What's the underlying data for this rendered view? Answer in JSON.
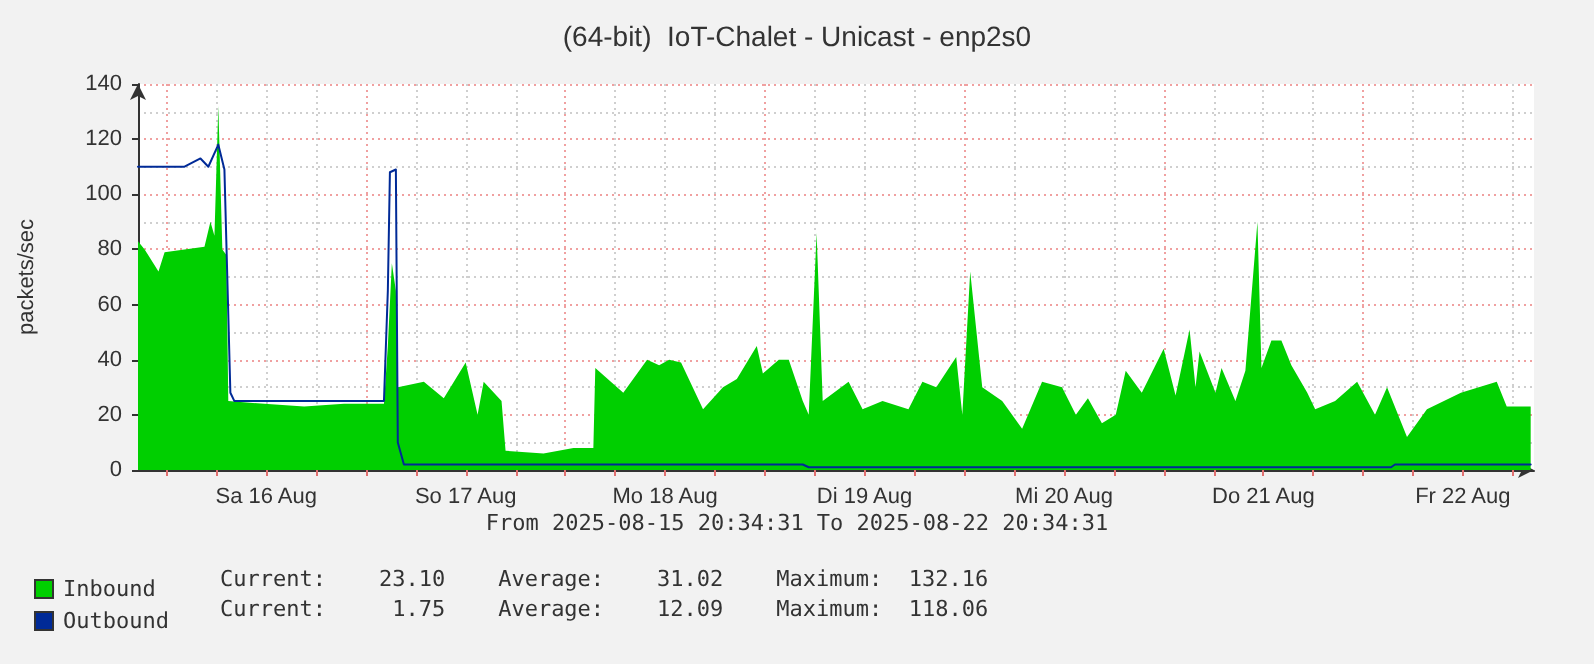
{
  "chart_data": {
    "type": "area",
    "title": "(64-bit)  IoT-Chalet - Unicast - enp2s0",
    "ylabel": "packets/sec",
    "annotations": [
      "From 2025-08-15 20:34:31 To 2025-08-22 20:34:31",
      "Current:    23.10    Average:    31.02    Maximum:  132.16",
      "Current:     1.75    Average:    12.09    Maximum:  118.06"
    ],
    "xlim": [
      "2025-08-15T20:34",
      "2025-08-22T20:34"
    ],
    "xticks": [
      {
        "value": "2025-08-16T00:00",
        "label": null
      },
      {
        "value": "2025-08-16T06:00",
        "label": null
      },
      {
        "value": "2025-08-16T12:00",
        "label": "Sa 16 Aug"
      },
      {
        "value": "2025-08-16T18:00",
        "label": null
      },
      {
        "value": "2025-08-17T00:00",
        "label": null
      },
      {
        "value": "2025-08-17T06:00",
        "label": null
      },
      {
        "value": "2025-08-17T12:00",
        "label": "So 17 Aug"
      },
      {
        "value": "2025-08-17T18:00",
        "label": null
      },
      {
        "value": "2025-08-18T00:00",
        "label": null
      },
      {
        "value": "2025-08-18T06:00",
        "label": null
      },
      {
        "value": "2025-08-18T12:00",
        "label": "Mo 18 Aug"
      },
      {
        "value": "2025-08-18T18:00",
        "label": null
      },
      {
        "value": "2025-08-19T00:00",
        "label": null
      },
      {
        "value": "2025-08-19T06:00",
        "label": null
      },
      {
        "value": "2025-08-19T12:00",
        "label": "Di 19 Aug"
      },
      {
        "value": "2025-08-19T18:00",
        "label": null
      },
      {
        "value": "2025-08-20T00:00",
        "label": null
      },
      {
        "value": "2025-08-20T06:00",
        "label": null
      },
      {
        "value": "2025-08-20T12:00",
        "label": "Mi 20 Aug"
      },
      {
        "value": "2025-08-20T18:00",
        "label": null
      },
      {
        "value": "2025-08-21T00:00",
        "label": null
      },
      {
        "value": "2025-08-21T06:00",
        "label": null
      },
      {
        "value": "2025-08-21T12:00",
        "label": "Do 21 Aug"
      },
      {
        "value": "2025-08-21T18:00",
        "label": null
      },
      {
        "value": "2025-08-22T00:00",
        "label": null
      },
      {
        "value": "2025-08-22T06:00",
        "label": null
      },
      {
        "value": "2025-08-22T12:00",
        "label": "Fr 22 Aug"
      },
      {
        "value": "2025-08-22T18:00",
        "label": null
      }
    ],
    "ylim": [
      0,
      140
    ],
    "yticks": [
      0,
      20,
      40,
      60,
      80,
      100,
      120,
      140
    ],
    "grid": true,
    "legend": "bottom left",
    "marker": "none",
    "line_style": "solid",
    "series": [
      {
        "name": "Inbound",
        "color": "#00cf00",
        "x": [
          "2025-08-15T20:34",
          "2025-08-15T21:22",
          "2025-08-15T23:02",
          "2025-08-15T23:46",
          "2025-08-16T02:10",
          "2025-08-16T04:34",
          "2025-08-16T05:17",
          "2025-08-16T05:46",
          "2025-08-16T06:14",
          "2025-08-16T06:43",
          "2025-08-16T07:12",
          "2025-08-16T07:26",
          "2025-08-16T11:46",
          "2025-08-16T16:34",
          "2025-08-16T21:22",
          "2025-08-17T02:10",
          "2025-08-17T02:38",
          "2025-08-17T03:07",
          "2025-08-17T03:36",
          "2025-08-17T03:50",
          "2025-08-17T06:58",
          "2025-08-17T09:22",
          "2025-08-17T12:00",
          "2025-08-17T13:26",
          "2025-08-17T14:10",
          "2025-08-17T16:19",
          "2025-08-17T16:48",
          "2025-08-17T21:22",
          "2025-08-18T00:58",
          "2025-08-18T03:22",
          "2025-08-18T03:36",
          "2025-08-18T06:58",
          "2025-08-18T09:50",
          "2025-08-18T11:17",
          "2025-08-18T12:29",
          "2025-08-18T13:55",
          "2025-08-18T16:34",
          "2025-08-18T18:58",
          "2025-08-18T20:38",
          "2025-08-18T23:02",
          "2025-08-18T23:46",
          "2025-08-19T01:41",
          "2025-08-19T02:53",
          "2025-08-19T04:34",
          "2025-08-19T05:17",
          "2025-08-19T06:14",
          "2025-08-19T06:58",
          "2025-08-19T10:05",
          "2025-08-19T11:46",
          "2025-08-19T14:10",
          "2025-08-19T17:17",
          "2025-08-19T18:58",
          "2025-08-19T20:38",
          "2025-08-19T23:02",
          "2025-08-19T23:46",
          "2025-08-20T00:43",
          "2025-08-20T02:10",
          "2025-08-20T04:34",
          "2025-08-20T06:58",
          "2025-08-20T09:22",
          "2025-08-20T11:46",
          "2025-08-20T13:26",
          "2025-08-20T14:53",
          "2025-08-20T16:34",
          "2025-08-20T18:14",
          "2025-08-20T19:26",
          "2025-08-20T21:22",
          "2025-08-21T00:00",
          "2025-08-21T01:26",
          "2025-08-21T03:07",
          "2025-08-21T03:50",
          "2025-08-21T04:19",
          "2025-08-21T06:14",
          "2025-08-21T06:58",
          "2025-08-21T08:38",
          "2025-08-21T09:50",
          "2025-08-21T11:17",
          "2025-08-21T11:46",
          "2025-08-21T12:58",
          "2025-08-21T14:10",
          "2025-08-21T15:22",
          "2025-08-21T17:17",
          "2025-08-21T18:14",
          "2025-08-21T20:38",
          "2025-08-21T23:17",
          "2025-08-22T01:26",
          "2025-08-22T02:53",
          "2025-08-22T05:17",
          "2025-08-22T07:41",
          "2025-08-22T11:46",
          "2025-08-22T16:05",
          "2025-08-22T17:17",
          "2025-08-22T20:10"
        ],
        "values": [
          83,
          80,
          72,
          79,
          80,
          81,
          90,
          85,
          132,
          80,
          78,
          25,
          24,
          23,
          24,
          24,
          45,
          75,
          65,
          30,
          32,
          26,
          39,
          20,
          32,
          25,
          7,
          6,
          8,
          8,
          37,
          28,
          40,
          38,
          40,
          39,
          22,
          30,
          33,
          45,
          35,
          40,
          40,
          25,
          20,
          86,
          25,
          32,
          22,
          25,
          22,
          32,
          30,
          41,
          20,
          72,
          30,
          25,
          15,
          32,
          30,
          20,
          26,
          17,
          20,
          36,
          28,
          44,
          27,
          51,
          30,
          43,
          28,
          37,
          25,
          36,
          90,
          37,
          47,
          47,
          38,
          28,
          22,
          25,
          32,
          20,
          30,
          12,
          22,
          28,
          32,
          23,
          23
        ]
      },
      {
        "name": "Outbound",
        "type": "line",
        "color": "#002a97",
        "x": [
          "2025-08-15T20:34",
          "2025-08-16T02:10",
          "2025-08-16T04:05",
          "2025-08-16T05:02",
          "2025-08-16T06:14",
          "2025-08-16T06:58",
          "2025-08-16T07:41",
          "2025-08-16T08:10",
          "2025-08-17T02:10",
          "2025-08-17T02:38",
          "2025-08-17T02:53",
          "2025-08-17T03:36",
          "2025-08-17T03:50",
          "2025-08-17T04:34",
          "2025-08-19T04:34",
          "2025-08-19T05:17",
          "2025-08-22T03:22",
          "2025-08-22T03:50",
          "2025-08-22T20:10"
        ],
        "values": [
          110,
          110,
          113,
          110,
          118,
          109,
          28,
          25,
          25,
          65,
          108,
          109,
          10,
          2,
          2,
          1,
          1,
          2,
          2
        ]
      }
    ]
  }
}
